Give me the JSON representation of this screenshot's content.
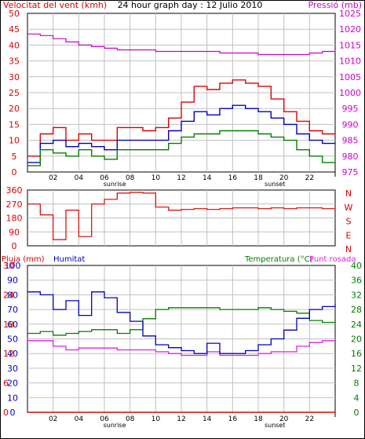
{
  "header": {
    "left": "Velocitat del vent (kmh)",
    "center": "24 hour graph day : 12 Julio 2010",
    "right": "Pressió (mb)"
  },
  "colors": {
    "wind_avg": "#e00000",
    "wind_gust": "#0000c0",
    "wind_low": "#008000",
    "pressure": "#cc00cc",
    "direction": "#e00000",
    "humidity": "#0000c0",
    "temperature": "#008000",
    "dewpoint": "#e020e0",
    "rain": "#e00000"
  },
  "chart_data": [
    {
      "type": "line",
      "title": "24 hour graph day : 12 Julio 2010",
      "ylabel": "Velocitat del vent (kmh)",
      "y2label": "Pressió (mb)",
      "ylim": [
        0,
        50
      ],
      "y2lim": [
        975,
        1025
      ],
      "grid": true,
      "x_ticks": [
        "02",
        "04",
        "06",
        "08",
        "10",
        "12",
        "14",
        "16",
        "18",
        "20",
        "22"
      ],
      "x_annotations": [
        "sunrise",
        "sunset"
      ],
      "y_ticks": [
        0,
        5,
        10,
        15,
        20,
        25,
        30,
        35,
        40,
        45,
        50
      ],
      "y2_ticks": [
        975,
        980,
        985,
        990,
        995,
        1000,
        1005,
        1010,
        1015,
        1020,
        1025
      ],
      "x": [
        0,
        1,
        2,
        3,
        4,
        5,
        6,
        7,
        8,
        9,
        10,
        11,
        12,
        13,
        14,
        15,
        16,
        17,
        18,
        19,
        20,
        21,
        22,
        23,
        24
      ],
      "series": [
        {
          "values": [
            5,
            12,
            14,
            10,
            12,
            10,
            10,
            14,
            14,
            13,
            14,
            17,
            22,
            27,
            26,
            28,
            29,
            28,
            27,
            23,
            19,
            16,
            13,
            12,
            12
          ]
        },
        {
          "values": [
            3,
            9,
            10,
            8,
            9,
            8,
            7,
            10,
            10,
            10,
            10,
            13,
            16,
            19,
            18,
            20,
            21,
            20,
            19,
            17,
            15,
            12,
            10,
            9,
            9
          ]
        },
        {
          "values": [
            2,
            7,
            6,
            5,
            7,
            5,
            4,
            7,
            7,
            7,
            7,
            9,
            11,
            12,
            12,
            13,
            13,
            13,
            12,
            11,
            10,
            7,
            5,
            3,
            5
          ]
        },
        {
          "axis": "y2",
          "values": [
            1018.5,
            1018,
            1017,
            1016,
            1015,
            1014.5,
            1014,
            1013.5,
            1013.5,
            1013.5,
            1013,
            1013,
            1013,
            1013,
            1013,
            1012.5,
            1012.5,
            1012.5,
            1012,
            1012,
            1012,
            1012,
            1012.5,
            1013,
            1013.5
          ]
        }
      ]
    },
    {
      "type": "line",
      "ylim": [
        0,
        360
      ],
      "y_ticks": [
        0,
        90,
        180,
        270,
        360
      ],
      "y2_labels": [
        "N",
        "W",
        "S",
        "E",
        "N"
      ],
      "grid": true,
      "x": [
        0,
        1,
        2,
        3,
        4,
        5,
        6,
        7,
        8,
        9,
        10,
        11,
        12,
        13,
        14,
        15,
        16,
        17,
        18,
        19,
        20,
        21,
        22,
        23,
        24
      ],
      "series": [
        {
          "values": [
            270,
            200,
            40,
            230,
            60,
            270,
            300,
            340,
            345,
            340,
            250,
            230,
            235,
            240,
            235,
            240,
            245,
            245,
            240,
            245,
            240,
            245,
            245,
            240,
            245
          ]
        }
      ]
    },
    {
      "type": "line",
      "labels": {
        "left1": "Pluja (mm)",
        "left2": "Humitat",
        "right": "Temperatura (°C)",
        "right2": "Punt rosada"
      },
      "ylim": [
        0,
        100
      ],
      "y2lim": [
        0,
        40
      ],
      "y_ticks": [
        0,
        10,
        20,
        30,
        40,
        50,
        60,
        70,
        80,
        90,
        100
      ],
      "y_ticks_b": [
        0,
        6,
        12,
        18,
        24,
        30
      ],
      "y2_ticks": [
        0,
        4,
        8,
        12,
        16,
        20,
        24,
        28,
        32,
        36,
        40
      ],
      "grid": true,
      "x_ticks": [
        "02",
        "04",
        "06",
        "08",
        "10",
        "12",
        "14",
        "16",
        "18",
        "20",
        "22"
      ],
      "x_annotations": [
        "sunrise",
        "sunset"
      ],
      "x": [
        0,
        1,
        2,
        3,
        4,
        5,
        6,
        7,
        8,
        9,
        10,
        11,
        12,
        13,
        14,
        15,
        16,
        17,
        18,
        19,
        20,
        21,
        22,
        23,
        24
      ],
      "series": [
        {
          "values": [
            82,
            80,
            70,
            76,
            66,
            82,
            78,
            68,
            62,
            52,
            46,
            44,
            42,
            40,
            47,
            40,
            40,
            42,
            46,
            50,
            56,
            64,
            70,
            72,
            74
          ]
        },
        {
          "axis": "y2",
          "values": [
            21.5,
            22,
            21,
            21.5,
            22,
            22.5,
            22.5,
            21.5,
            22.5,
            25.5,
            28,
            28.5,
            28.5,
            28.5,
            28.5,
            28,
            28,
            28,
            28.5,
            28,
            27.5,
            27,
            25,
            24.5,
            24.5
          ]
        },
        {
          "axis": "y2",
          "values": [
            19.5,
            19.5,
            18,
            17,
            17.5,
            17.5,
            17.5,
            17,
            17,
            17,
            16.5,
            16,
            15.5,
            15.5,
            16.5,
            15.5,
            15.5,
            15.5,
            16,
            16.5,
            16.5,
            18,
            19,
            19.5,
            19.5
          ]
        },
        {
          "values": [
            0,
            0,
            0,
            0,
            0,
            0,
            0,
            0,
            0,
            0,
            0,
            0,
            0,
            0,
            0,
            0,
            0,
            0,
            0,
            0,
            0,
            0,
            0,
            0,
            0
          ]
        }
      ]
    }
  ]
}
